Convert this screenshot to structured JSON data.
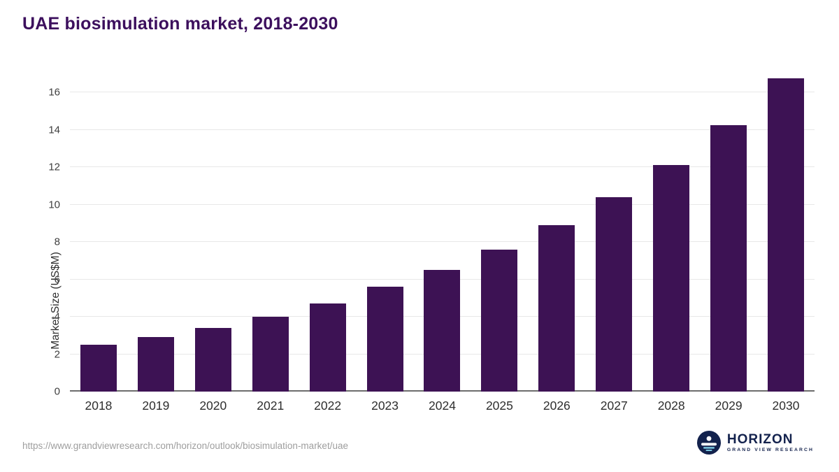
{
  "header": {
    "title": "UAE biosimulation market, 2018-2030"
  },
  "chart_data": {
    "type": "bar",
    "title": "UAE biosimulation market, 2018-2030",
    "categories": [
      "2018",
      "2019",
      "2020",
      "2021",
      "2022",
      "2023",
      "2024",
      "2025",
      "2026",
      "2027",
      "2028",
      "2029",
      "2030"
    ],
    "values": [
      2.5,
      2.9,
      3.4,
      4.0,
      4.7,
      5.6,
      6.5,
      7.6,
      8.9,
      10.4,
      12.1,
      14.25,
      16.75
    ],
    "xlabel": "",
    "ylabel": "Market Size (US$M)",
    "ylim": [
      0,
      17.2
    ],
    "yticks": [
      0,
      2,
      4,
      6,
      8,
      10,
      12,
      14,
      16
    ],
    "grid": true,
    "legend": "none",
    "bar_color": "#3d1254"
  },
  "colors": {
    "title": "#3c0f5d",
    "bar": "#3d1254",
    "gridline": "#e8e8e8",
    "logo_navy": "#13224d",
    "logo_light_blue": "#7fd0e8"
  },
  "footer": {
    "source_url": "https://www.grandviewresearch.com/horizon/outlook/biosimulation-market/uae",
    "logo": {
      "name": "HORIZON",
      "subtitle": "GRAND VIEW RESEARCH"
    }
  }
}
